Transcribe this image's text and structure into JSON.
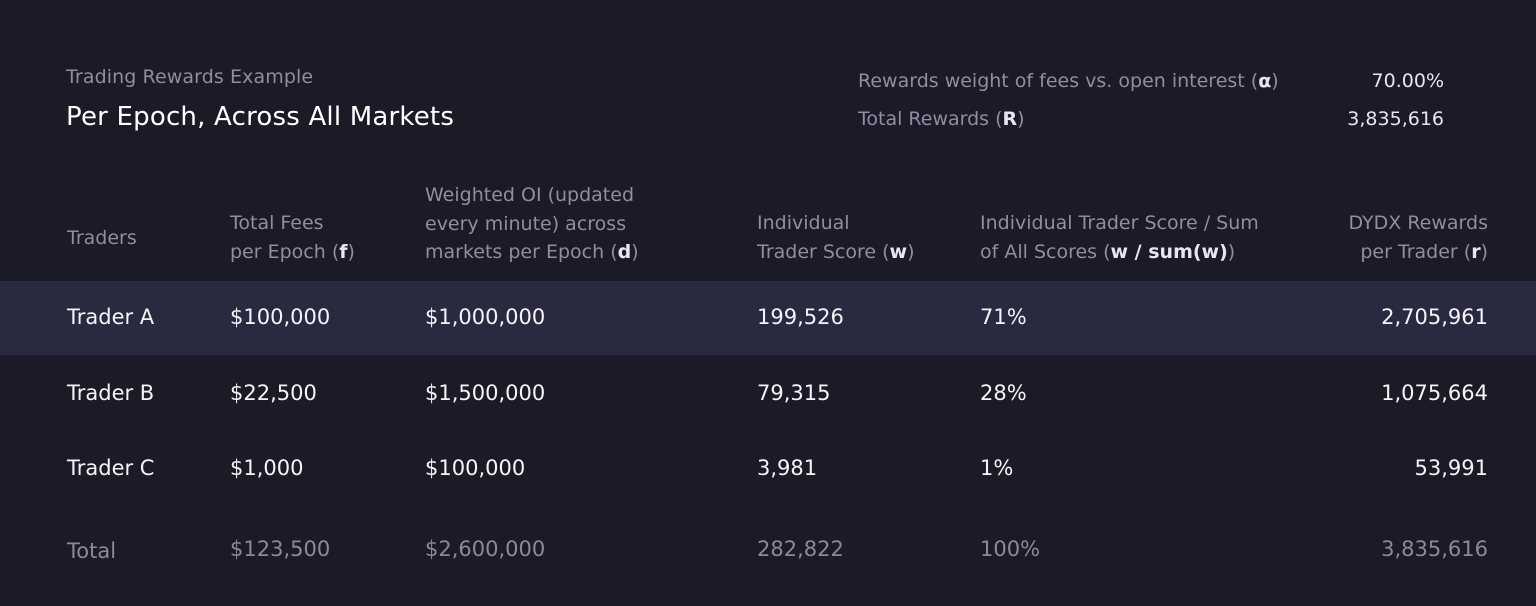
{
  "header": {
    "eyebrow": "Trading Rewards Example",
    "title": "Per Epoch, Across All Markets"
  },
  "params": [
    {
      "label": "Rewards weight of fees vs. open interest",
      "symbol": "α",
      "value": "70.00%"
    },
    {
      "label": "Total Rewards",
      "symbol": "R",
      "value": "3,835,616"
    }
  ],
  "columns": {
    "traders": "Traders",
    "fees_l1": "Total Fees",
    "fees_l2": "per Epoch",
    "fees_sym": "f",
    "oi_l1": "Weighted OI (updated",
    "oi_l2": "every minute) across",
    "oi_l3": "markets per Epoch",
    "oi_sym": "d",
    "score_l1": "Individual",
    "score_l2": "Trader Score",
    "score_sym": "w",
    "share_l1": "Individual Trader Score / Sum",
    "share_l2": "of All Scores",
    "share_sym": "w / sum(w)",
    "rewards_l1": "DYDX Rewards",
    "rewards_l2": "per Trader",
    "rewards_sym": "r"
  },
  "rows": [
    {
      "trader": "Trader A",
      "fees": "$100,000",
      "oi": "$1,000,000",
      "score": "199,526",
      "share": "71%",
      "rewards": "2,705,961"
    },
    {
      "trader": "Trader B",
      "fees": "$22,500",
      "oi": "$1,500,000",
      "score": "79,315",
      "share": "28%",
      "rewards": "1,075,664"
    },
    {
      "trader": "Trader C",
      "fees": "$1,000",
      "oi": "$100,000",
      "score": "3,981",
      "share": "1%",
      "rewards": "53,991"
    }
  ],
  "total": {
    "trader": "Total",
    "fees": "$123,500",
    "oi": "$2,600,000",
    "score": "282,822",
    "share": "100%",
    "rewards": "3,835,616"
  },
  "colors": {
    "background": "#1b1a27",
    "highlight_row": "#292a40",
    "muted_text": "#8f8ea2",
    "primary_text": "#f4f4f8"
  }
}
